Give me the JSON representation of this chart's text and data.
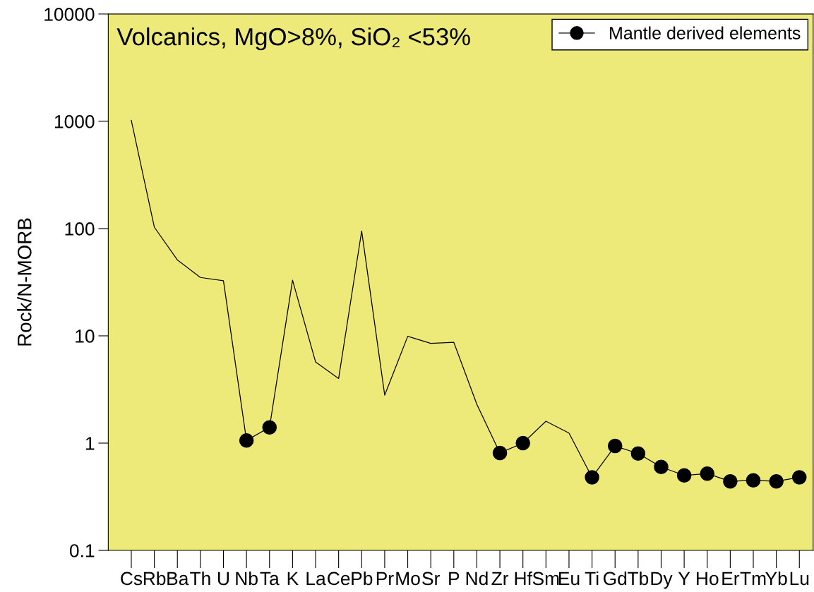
{
  "chart_data": {
    "type": "line",
    "title": "Volcanics, MgO>8%, SiO₂ <53%",
    "ylabel": "Rock/N-MORB",
    "categories": [
      "Cs",
      "Rb",
      "Ba",
      "Th",
      "U",
      "Nb",
      "Ta",
      "K",
      "La",
      "Ce",
      "Pb",
      "Pr",
      "Mo",
      "Sr",
      "P",
      "Nd",
      "Zr",
      "Hf",
      "Sm",
      "Eu",
      "Ti",
      "Gd",
      "Tb",
      "Dy",
      "Y",
      "Ho",
      "Er",
      "Tm",
      "Yb",
      "Lu"
    ],
    "series": [
      {
        "color": "#000000",
        "values": [
          1020,
          103,
          51,
          35,
          32.6,
          1.06,
          1.4,
          33,
          5.7,
          4.0,
          95,
          2.8,
          9.9,
          8.5,
          8.7,
          2.3,
          0.81,
          1.0,
          1.6,
          1.24,
          0.48,
          0.94,
          0.8,
          0.6,
          0.5,
          0.52,
          0.44,
          0.45,
          0.44,
          0.48
        ]
      },
      {
        "type": "scatter",
        "name": "Mantle derived elements",
        "color": "#000000",
        "marker": "circle",
        "values": [
          null,
          null,
          null,
          null,
          null,
          1.06,
          1.4,
          null,
          null,
          null,
          null,
          null,
          null,
          null,
          null,
          null,
          0.81,
          1.0,
          null,
          null,
          0.48,
          0.94,
          0.8,
          0.6,
          0.5,
          0.52,
          0.44,
          0.45,
          0.44,
          0.48
        ]
      }
    ],
    "log": "y",
    "ylim": [
      0.1,
      10000
    ],
    "yticks": [
      0.1,
      1,
      10,
      100,
      1000,
      10000
    ],
    "grid": false,
    "legend": "top right"
  }
}
